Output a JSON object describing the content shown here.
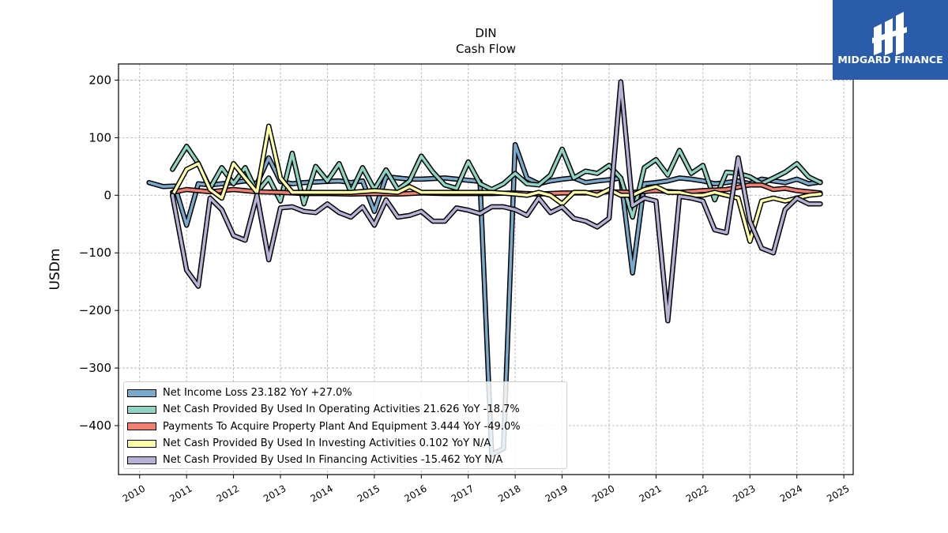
{
  "branding": {
    "logo_text": "MIDGARD FINANCE",
    "logo_bg": "#2a5caa"
  },
  "chart_data": {
    "type": "line",
    "title": "DIN",
    "subtitle": "Cash Flow",
    "ylabel": "USDm",
    "xlabel": "",
    "xlim": [
      2009.55,
      2025.2
    ],
    "ylim": [
      -485,
      228
    ],
    "x_ticks": [
      2010,
      2011,
      2012,
      2013,
      2014,
      2015,
      2016,
      2017,
      2018,
      2019,
      2020,
      2021,
      2022,
      2023,
      2024,
      2025
    ],
    "y_ticks": [
      200,
      100,
      0,
      -100,
      -200,
      -300,
      -400
    ],
    "y_tick_labels": [
      "200",
      "100",
      "0",
      "−100",
      "−200",
      "−300",
      "−400"
    ],
    "grid": true,
    "legend_position": "lower-left",
    "series": [
      {
        "name": "Net Income Loss",
        "legend": "Net Income Loss  23.182 YoY +27.0%",
        "color": "#7aaacb",
        "x": [
          2010.2,
          2010.5,
          2010.75,
          2011.0,
          2011.25,
          2011.5,
          2011.75,
          2012.0,
          2012.25,
          2012.5,
          2012.75,
          2013.0,
          2013.25,
          2013.5,
          2013.75,
          2014.0,
          2014.25,
          2014.5,
          2014.75,
          2015.0,
          2015.25,
          2015.5,
          2015.75,
          2016.0,
          2016.25,
          2016.5,
          2016.75,
          2017.0,
          2017.25,
          2017.5,
          2017.75,
          2018.0,
          2018.25,
          2018.5,
          2018.75,
          2019.0,
          2019.25,
          2019.5,
          2019.75,
          2020.0,
          2020.25,
          2020.5,
          2020.75,
          2021.0,
          2021.25,
          2021.5,
          2021.75,
          2022.0,
          2022.25,
          2022.5,
          2022.75,
          2023.0,
          2023.25,
          2023.5,
          2023.75,
          2024.0,
          2024.25,
          2024.5
        ],
        "y": [
          22,
          15,
          16,
          -52,
          20,
          18,
          20,
          22,
          25,
          20,
          65,
          24,
          20,
          22,
          23,
          24,
          25,
          22,
          25,
          -28,
          32,
          30,
          28,
          28,
          29,
          30,
          28,
          26,
          24,
          -450,
          -440,
          88,
          30,
          20,
          25,
          28,
          30,
          22,
          25,
          27,
          30,
          -135,
          20,
          22,
          25,
          30,
          28,
          25,
          20,
          22,
          25,
          20,
          28,
          25,
          22,
          28,
          20,
          23
        ]
      },
      {
        "name": "Net Cash Provided By Used In Operating Activities",
        "legend": "Net Cash Provided By Used In Operating Activities  21.626 YoY -18.7%",
        "color": "#8fd3c3",
        "x": [
          2010.7,
          2011.0,
          2011.25,
          2011.5,
          2011.75,
          2012.0,
          2012.25,
          2012.5,
          2012.75,
          2013.0,
          2013.25,
          2013.5,
          2013.75,
          2014.0,
          2014.25,
          2014.5,
          2014.75,
          2015.0,
          2015.25,
          2015.5,
          2015.75,
          2016.0,
          2016.25,
          2016.5,
          2016.75,
          2017.0,
          2017.25,
          2017.5,
          2017.75,
          2018.0,
          2018.25,
          2018.5,
          2018.75,
          2019.0,
          2019.25,
          2019.5,
          2019.75,
          2020.0,
          2020.25,
          2020.5,
          2020.75,
          2021.0,
          2021.25,
          2021.5,
          2021.75,
          2022.0,
          2022.25,
          2022.5,
          2022.75,
          2023.0,
          2023.25,
          2023.5,
          2023.75,
          2024.0,
          2024.25,
          2024.5
        ],
        "y": [
          45,
          85,
          55,
          12,
          48,
          20,
          48,
          5,
          30,
          -10,
          73,
          -15,
          50,
          25,
          55,
          5,
          48,
          10,
          44,
          10,
          25,
          68,
          40,
          18,
          12,
          58,
          20,
          10,
          20,
          38,
          20,
          18,
          35,
          80,
          30,
          42,
          38,
          52,
          30,
          -38,
          48,
          62,
          35,
          78,
          38,
          52,
          -8,
          40,
          38,
          32,
          20,
          30,
          40,
          55,
          32,
          22
        ]
      },
      {
        "name": "Payments To Acquire Property Plant And Equipment",
        "legend": "Payments To Acquire Property Plant And Equipment  3.444 YoY -49.0%",
        "color": "#f28072",
        "x": [
          2010.7,
          2011.0,
          2011.5,
          2012.0,
          2012.5,
          2013.0,
          2013.5,
          2014.0,
          2014.5,
          2015.0,
          2015.5,
          2016.0,
          2016.5,
          2017.0,
          2017.5,
          2018.0,
          2018.5,
          2019.0,
          2019.5,
          2020.0,
          2020.5,
          2021.0,
          2021.5,
          2022.0,
          2022.5,
          2023.0,
          2023.25,
          2023.5,
          2023.75,
          2024.0,
          2024.25,
          2024.5
        ],
        "y": [
          5,
          10,
          6,
          10,
          6,
          5,
          3,
          3,
          2,
          3,
          2,
          4,
          3,
          3,
          3,
          4,
          2,
          4,
          4,
          6,
          5,
          8,
          5,
          8,
          10,
          18,
          18,
          10,
          12,
          8,
          6,
          4
        ]
      },
      {
        "name": "Net Cash Provided By Used In Investing Activities",
        "legend": "Net Cash Provided By Used In Investing Activities  0.102 YoY N/A",
        "color": "#fdfdaa",
        "x": [
          2010.7,
          2011.0,
          2011.25,
          2011.5,
          2011.75,
          2012.0,
          2012.25,
          2012.5,
          2012.75,
          2013.0,
          2013.25,
          2013.5,
          2014.0,
          2014.5,
          2015.0,
          2015.5,
          2015.75,
          2016.0,
          2016.5,
          2017.0,
          2017.5,
          2018.0,
          2018.25,
          2018.5,
          2018.75,
          2019.0,
          2019.25,
          2019.5,
          2019.75,
          2020.0,
          2020.25,
          2020.5,
          2020.75,
          2021.0,
          2021.25,
          2021.5,
          2021.75,
          2022.0,
          2022.25,
          2022.5,
          2022.75,
          2023.0,
          2023.25,
          2023.5,
          2023.75,
          2024.0,
          2024.25,
          2024.5
        ],
        "y": [
          0,
          45,
          55,
          10,
          -5,
          55,
          30,
          5,
          120,
          30,
          5,
          5,
          5,
          5,
          8,
          5,
          15,
          5,
          5,
          5,
          5,
          2,
          0,
          5,
          0,
          -15,
          5,
          5,
          0,
          10,
          0,
          0,
          10,
          15,
          5,
          5,
          0,
          0,
          5,
          0,
          -5,
          -80,
          -10,
          -5,
          -10,
          -5,
          0,
          2
        ]
      },
      {
        "name": "Net Cash Provided By Used In Financing Activities",
        "legend": "Net Cash Provided By Used In Financing Activities  -15.462 YoY N/A",
        "color": "#b5b2d6",
        "x": [
          2010.7,
          2011.0,
          2011.25,
          2011.5,
          2011.75,
          2012.0,
          2012.25,
          2012.5,
          2012.75,
          2013.0,
          2013.25,
          2013.5,
          2013.75,
          2014.0,
          2014.25,
          2014.5,
          2014.75,
          2015.0,
          2015.25,
          2015.5,
          2015.75,
          2016.0,
          2016.25,
          2016.5,
          2016.75,
          2017.0,
          2017.25,
          2017.5,
          2017.75,
          2018.0,
          2018.25,
          2018.5,
          2018.75,
          2019.0,
          2019.25,
          2019.5,
          2019.75,
          2020.0,
          2020.25,
          2020.5,
          2020.75,
          2021.0,
          2021.25,
          2021.5,
          2021.75,
          2022.0,
          2022.25,
          2022.5,
          2022.75,
          2023.0,
          2023.25,
          2023.5,
          2023.75,
          2024.0,
          2024.25,
          2024.5
        ],
        "y": [
          0,
          -130,
          -158,
          -5,
          -25,
          -70,
          -78,
          0,
          -112,
          -22,
          -20,
          -28,
          -30,
          -15,
          -30,
          -38,
          -20,
          -52,
          -8,
          -38,
          -35,
          -28,
          -45,
          -45,
          -22,
          -26,
          -32,
          -20,
          -20,
          -25,
          -35,
          -5,
          -30,
          -20,
          -40,
          -45,
          -55,
          -40,
          197,
          -18,
          -5,
          -10,
          -218,
          -2,
          -5,
          -10,
          -60,
          -65,
          65,
          -45,
          -92,
          -100,
          -25,
          -5,
          -15,
          -15
        ]
      }
    ]
  }
}
